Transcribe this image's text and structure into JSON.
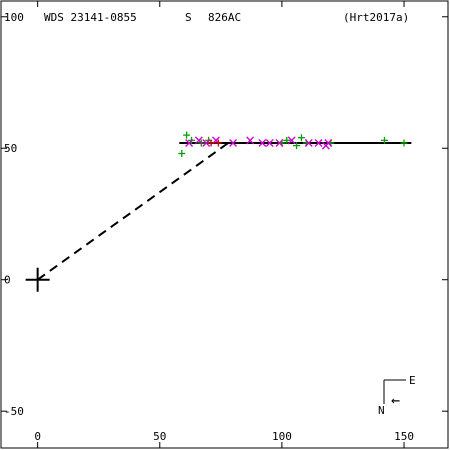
{
  "header": {
    "designation": "WDS 23141-0855",
    "quadrant": "S",
    "discoverer": "826AC",
    "reference": "(Hrt2017a)"
  },
  "compass": {
    "east_label": "E",
    "north_label": "N",
    "arrow_glyph": "←"
  },
  "colors": {
    "axes": "#000000",
    "orbit_line": "#000000",
    "green_obs": "#00a000",
    "magenta_obs": "#cc00cc",
    "red_obs": "#cc0000"
  },
  "chart_data": {
    "type": "scatter",
    "xlim": [
      -15,
      168
    ],
    "ylim": [
      -64,
      106
    ],
    "x_ticks": [
      0,
      50,
      100,
      150
    ],
    "x_tick_labels": [
      "0",
      "50",
      "100",
      "150"
    ],
    "y_ticks": [
      -50,
      0,
      50,
      100
    ],
    "y_tick_labels": [
      "-50",
      "0",
      "50",
      "100"
    ],
    "primary_star": [
      0,
      0
    ],
    "dashed_segment": [
      [
        0,
        0
      ],
      [
        78,
        52
      ]
    ],
    "fit_line": [
      [
        58,
        52
      ],
      [
        153,
        52
      ]
    ],
    "series": [
      {
        "marker": "+",
        "color": "green_obs",
        "points": [
          [
            59,
            48
          ],
          [
            61,
            55
          ],
          [
            63,
            53
          ],
          [
            67,
            52
          ],
          [
            70,
            53
          ],
          [
            100,
            52
          ],
          [
            102,
            53
          ],
          [
            106,
            51
          ],
          [
            108,
            54
          ],
          [
            110,
            52
          ],
          [
            120,
            52
          ],
          [
            142,
            53
          ],
          [
            150,
            52
          ]
        ]
      },
      {
        "marker": "x",
        "color": "magenta_obs",
        "points": [
          [
            62,
            52
          ],
          [
            66,
            53
          ],
          [
            69,
            52
          ],
          [
            73,
            53
          ],
          [
            80,
            52
          ],
          [
            87,
            53
          ],
          [
            92,
            52
          ],
          [
            95,
            52
          ],
          [
            99,
            52
          ],
          [
            104,
            53
          ],
          [
            111,
            52
          ],
          [
            115,
            52
          ],
          [
            118,
            51
          ],
          [
            119,
            52
          ]
        ]
      },
      {
        "marker": "+",
        "color": "red_obs",
        "points": [
          [
            71,
            52
          ],
          [
            74,
            52
          ]
        ]
      }
    ]
  }
}
